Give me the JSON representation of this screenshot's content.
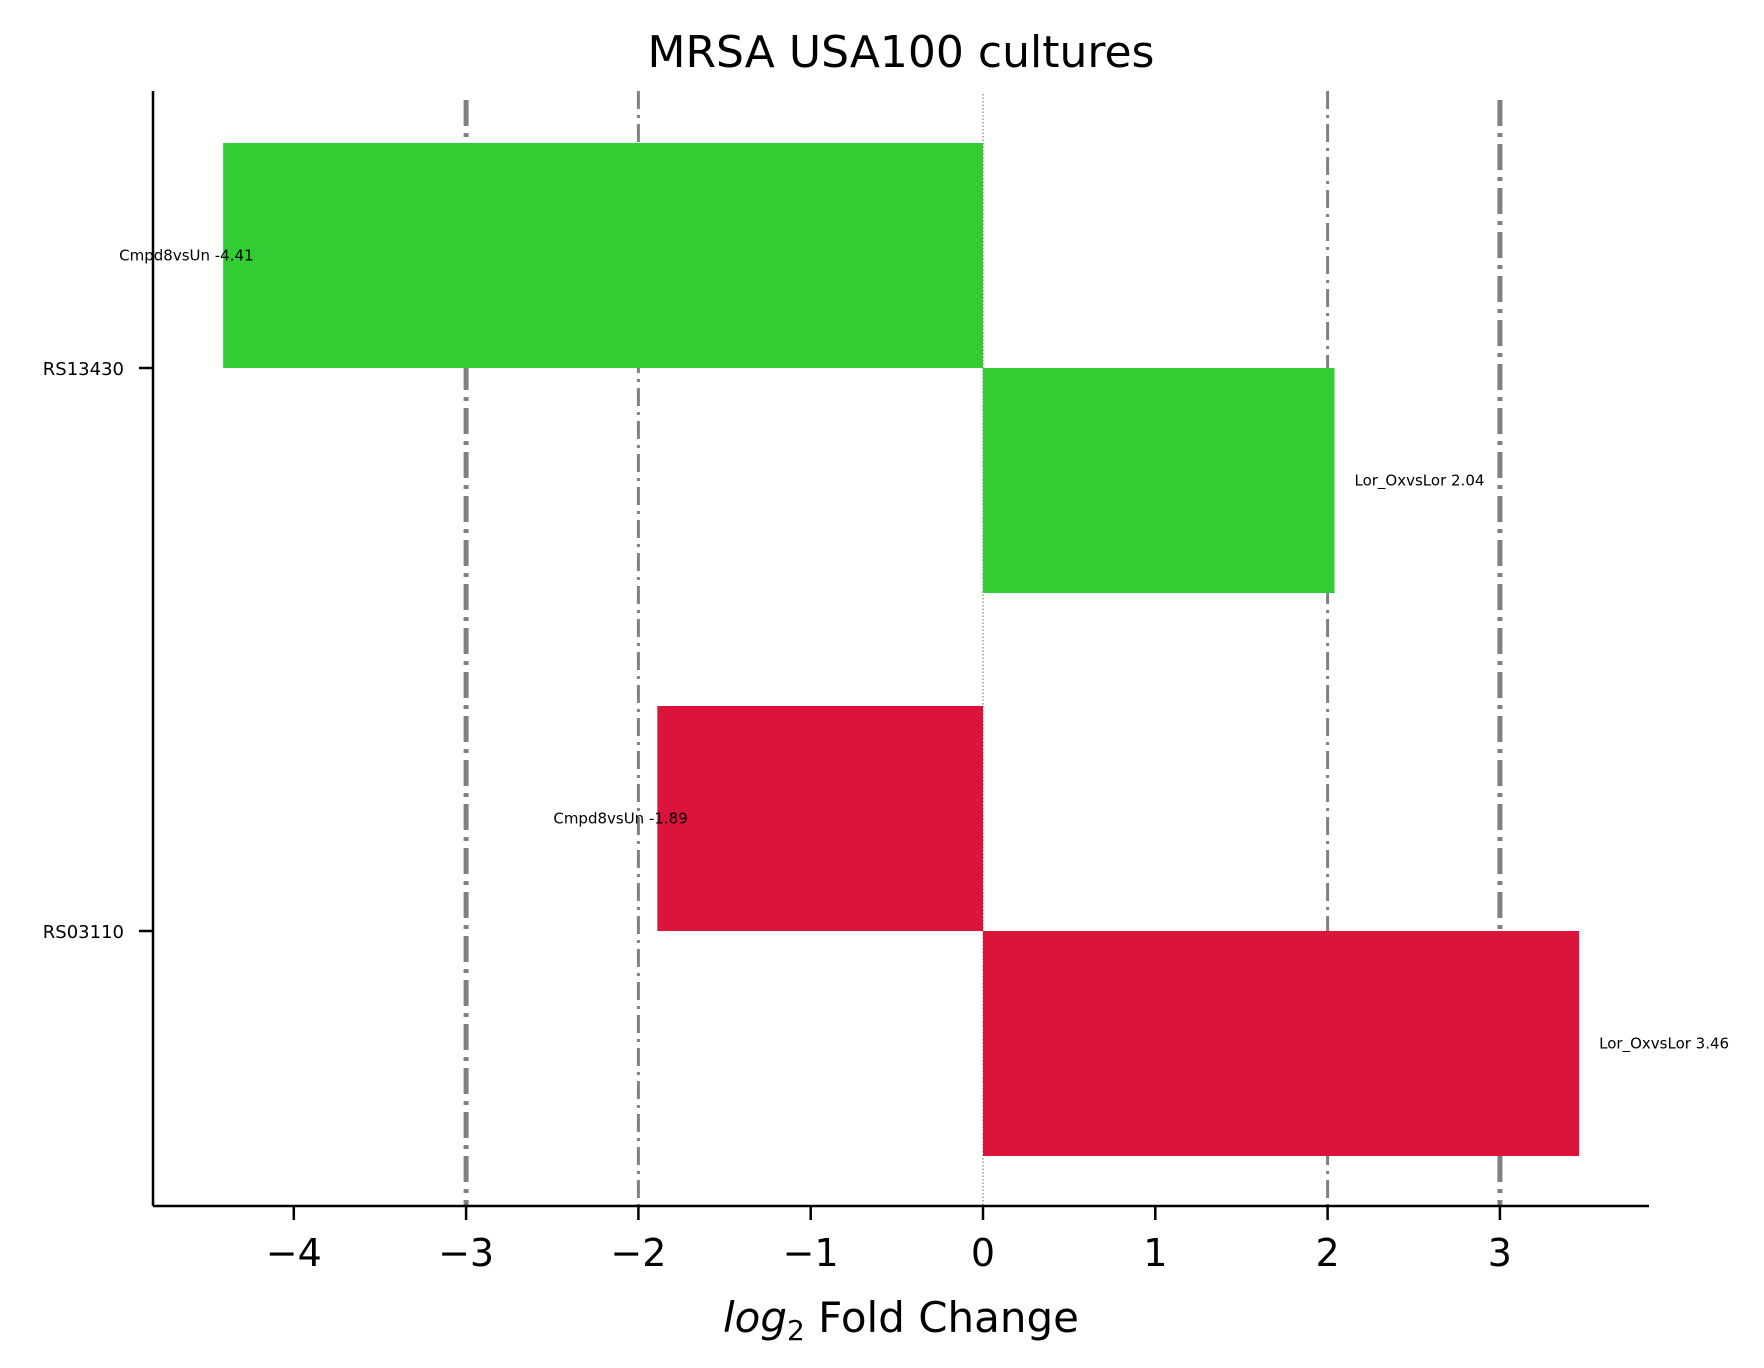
{
  "chart_data": {
    "type": "bar",
    "orientation": "horizontal",
    "title": "MRSA USA100 cultures",
    "xlabel_italic": "log",
    "xlabel_subscript": "2",
    "xlabel_rest": " Fold Change",
    "xlim": [
      -4.8,
      3.8
    ],
    "xticks": [
      -4,
      -3,
      -2,
      -1,
      0,
      1,
      2,
      3
    ],
    "xtick_labels": [
      "−4",
      "−3",
      "−2",
      "−1",
      "0",
      "1",
      "2",
      "3"
    ],
    "categories": [
      "RS13430",
      "RS03110"
    ],
    "bars": [
      {
        "category": "RS13430",
        "label": "Cmpd8vsUn -4.41",
        "value": -4.41,
        "color": "#32cd32",
        "slot": "upper"
      },
      {
        "category": "RS13430",
        "label": "Lor_OxvsLor 2.04",
        "value": 2.04,
        "color": "#32cd32",
        "slot": "lower"
      },
      {
        "category": "RS03110",
        "label": "Cmpd8vsUn -1.89",
        "value": -1.89,
        "color": "#dc143c",
        "slot": "upper"
      },
      {
        "category": "RS03110",
        "label": "Lor_OxvsLor 3.46",
        "value": 3.46,
        "color": "#dc143c",
        "slot": "lower"
      }
    ],
    "reference_lines": [
      {
        "x": -3,
        "style": "dashdot-thick"
      },
      {
        "x": -2,
        "style": "dashdot-thin"
      },
      {
        "x": 0,
        "style": "dotted"
      },
      {
        "x": 2,
        "style": "dashdot-thin"
      },
      {
        "x": 3,
        "style": "dashdot-thick"
      }
    ],
    "grid": false,
    "legend": "none"
  }
}
